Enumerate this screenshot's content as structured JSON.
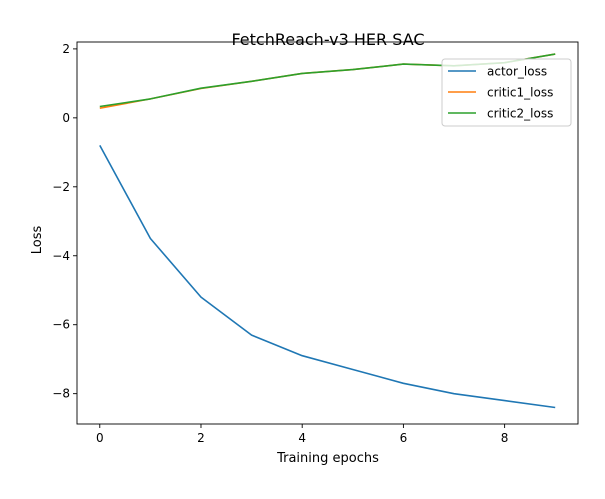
{
  "chart_data": {
    "type": "line",
    "title": "FetchReach-v3 HER SAC",
    "xlabel": "Training epochs",
    "ylabel": "Loss",
    "x": [
      0,
      1,
      2,
      3,
      4,
      5,
      6,
      7,
      8,
      9
    ],
    "xlim": [
      -0.45,
      9.45
    ],
    "ylim": [
      -8.88,
      2.2
    ],
    "xticks": [
      0,
      2,
      4,
      6,
      8
    ],
    "xtick_labels": [
      "0",
      "2",
      "4",
      "6",
      "8"
    ],
    "yticks": [
      2,
      0,
      -2,
      -4,
      -6,
      -8
    ],
    "ytick_labels": [
      "2",
      "0",
      "−2",
      "−4",
      "−6",
      "−8"
    ],
    "grid": false,
    "legend_position": "top-right",
    "series": [
      {
        "name": "actor_loss",
        "color": "#1f77b4",
        "values": [
          -0.8,
          -3.5,
          -5.2,
          -6.3,
          -6.9,
          -7.3,
          -7.7,
          -8.0,
          -8.2,
          -8.4
        ]
      },
      {
        "name": "critic1_loss",
        "color": "#ff7f0e",
        "values": [
          0.28,
          0.55,
          0.85,
          1.06,
          1.29,
          1.4,
          1.56,
          1.51,
          1.6,
          1.85
        ]
      },
      {
        "name": "critic2_loss",
        "color": "#2ca02c",
        "values": [
          0.33,
          0.55,
          0.86,
          1.06,
          1.29,
          1.4,
          1.56,
          1.51,
          1.6,
          1.85
        ]
      }
    ]
  }
}
